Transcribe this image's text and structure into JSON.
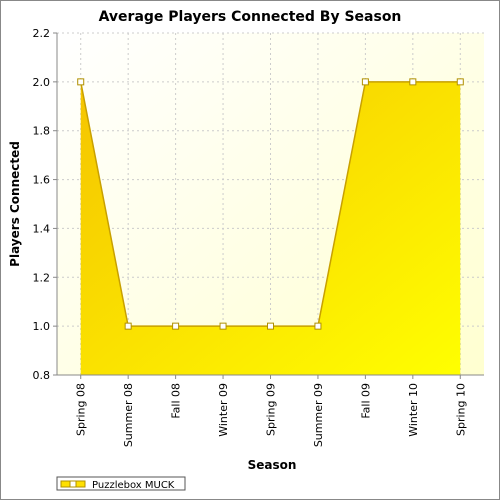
{
  "chart_data": {
    "type": "area",
    "title": "Average Players Connected By Season",
    "x_label": "Season",
    "y_label": "Players Connected",
    "categories": [
      "Spring 08",
      "Summer 08",
      "Fall 08",
      "Winter 09",
      "Spring 09",
      "Summer 09",
      "Fall 09",
      "Winter 10",
      "Spring 10"
    ],
    "series": [
      {
        "name": "Puzzlebox MUCK",
        "color": "#ffe000",
        "values": [
          2.0,
          1.0,
          1.0,
          1.0,
          1.0,
          1.0,
          2.0,
          2.0,
          2.0
        ]
      }
    ],
    "ylim": [
      0.8,
      2.2
    ],
    "yticks": [
      0.8,
      {
        "value": 1.0,
        "label": "1.0"
      },
      1.2,
      1.4,
      1.6,
      1.8,
      {
        "value": 2.0,
        "label": "2.0"
      },
      2.2
    ],
    "grid": true
  }
}
